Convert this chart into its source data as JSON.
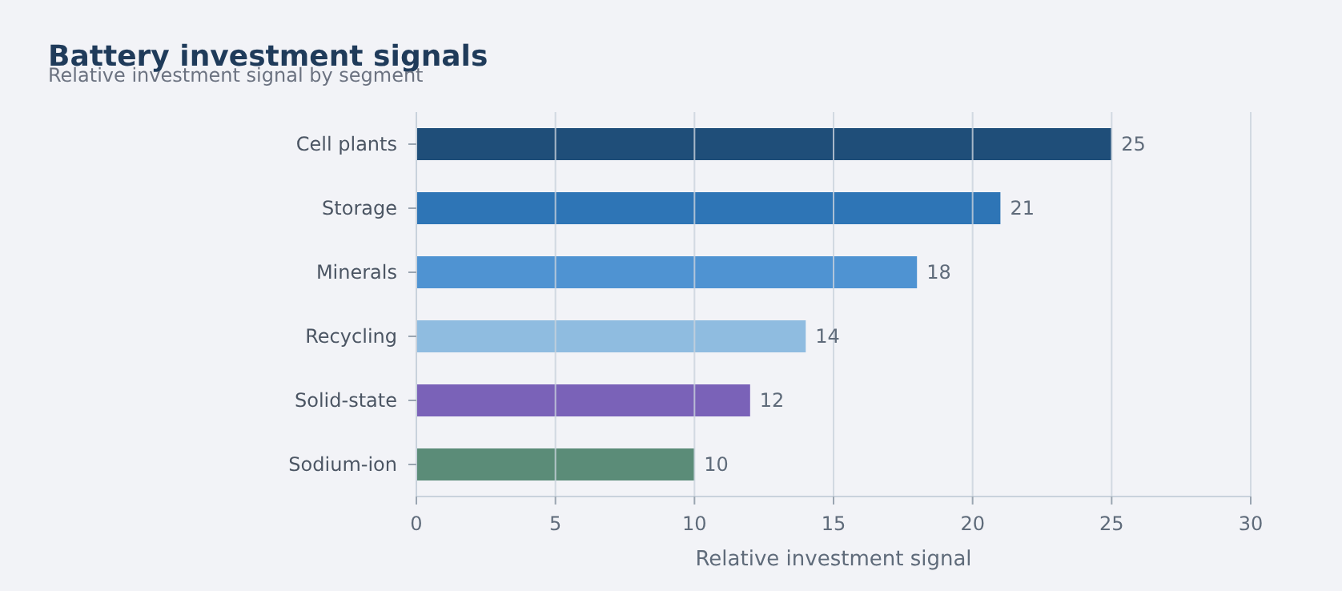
{
  "chart_data": {
    "type": "bar",
    "orientation": "horizontal",
    "title": "Battery investment signals",
    "subtitle": "Relative investment signal by segment",
    "xlabel": "Relative investment signal",
    "categories": [
      "Cell plants",
      "Storage",
      "Minerals",
      "Recycling",
      "Solid-state",
      "Sodium-ion"
    ],
    "values": [
      25,
      21,
      18,
      14,
      12,
      10
    ],
    "colors": [
      "#1f4e79",
      "#2e75b6",
      "#4f93d2",
      "#8fbce0",
      "#7a62b8",
      "#5b8c78"
    ],
    "xlim": [
      0,
      30
    ],
    "xticks": [
      0,
      5,
      10,
      15,
      20,
      25,
      30
    ],
    "grid": "x",
    "data_labels": true
  }
}
